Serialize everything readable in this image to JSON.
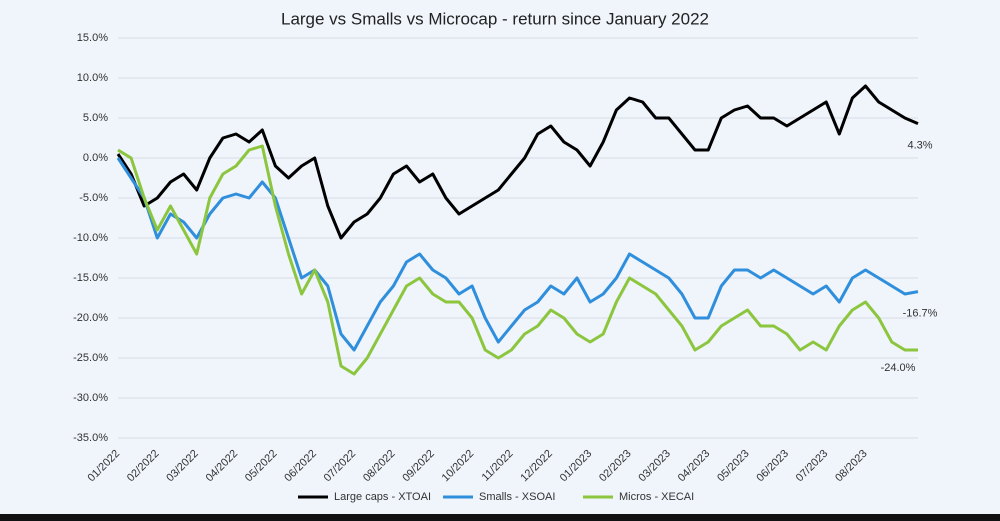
{
  "chart_data": {
    "type": "line",
    "title": "Large vs Smalls vs Microcap - return since January 2022",
    "categories": [
      "01/2022",
      null,
      null,
      "02/2022",
      null,
      null,
      "03/2022",
      null,
      null,
      "04/2022",
      null,
      null,
      "05/2022",
      null,
      null,
      "06/2022",
      null,
      null,
      "07/2022",
      null,
      null,
      "08/2022",
      null,
      null,
      "09/2022",
      null,
      null,
      "10/2022",
      null,
      null,
      "11/2022",
      null,
      null,
      "12/2022",
      null,
      null,
      "01/2023",
      null,
      null,
      "02/2023",
      null,
      null,
      "03/2023",
      null,
      null,
      "04/2023",
      null,
      null,
      "05/2023",
      null,
      null,
      "06/2023",
      null,
      null,
      "07/2023",
      null,
      null,
      "08/2023",
      null,
      null,
      null,
      null
    ],
    "ylim": [
      -35,
      15
    ],
    "yticks": [
      {
        "value": 15,
        "label": "15.0%"
      },
      {
        "value": 10,
        "label": "10.0%"
      },
      {
        "value": 5,
        "label": "5.0%"
      },
      {
        "value": 0,
        "label": "0.0%"
      },
      {
        "value": -5,
        "label": "-5.0%"
      },
      {
        "value": -10,
        "label": "-10.0%"
      },
      {
        "value": -15,
        "label": "-15.0%"
      },
      {
        "value": -20,
        "label": "-20.0%"
      },
      {
        "value": -25,
        "label": "-25.0%"
      },
      {
        "value": -30,
        "label": "-30.0%"
      },
      {
        "value": -35,
        "label": "-35.0%"
      }
    ],
    "grid": true,
    "legend": "bottom",
    "series": [
      {
        "name": "Large caps - XTOAI",
        "color": "#000000",
        "end_label": "4.3%",
        "values": [
          0.5,
          -2,
          -6,
          -5,
          -3,
          -2,
          -4,
          0,
          2.5,
          3,
          2,
          3.5,
          -1,
          -2.5,
          -1,
          0,
          -6,
          -10,
          -8,
          -7,
          -5,
          -2,
          -1,
          -3,
          -2,
          -5,
          -7,
          -6,
          -5,
          -4,
          -2,
          0,
          3,
          4,
          2,
          1,
          -1,
          2,
          6,
          7.5,
          7,
          5,
          5,
          3,
          1,
          1,
          5,
          6,
          6.5,
          5,
          5,
          4,
          5,
          6,
          7,
          3,
          7.5,
          9,
          7,
          6,
          5,
          4.3
        ]
      },
      {
        "name": "Smalls - XSOAI",
        "color": "#2f8fdc",
        "end_label": "-16.7%",
        "values": [
          0,
          -2.5,
          -5,
          -10,
          -7,
          -8,
          -10,
          -7,
          -5,
          -4.5,
          -5,
          -3,
          -5,
          -10,
          -15,
          -14,
          -16,
          -22,
          -24,
          -21,
          -18,
          -16,
          -13,
          -12,
          -14,
          -15,
          -17,
          -16,
          -20,
          -23,
          -21,
          -19,
          -18,
          -16,
          -17,
          -15,
          -18,
          -17,
          -15,
          -12,
          -13,
          -14,
          -15,
          -17,
          -20,
          -20,
          -16,
          -14,
          -14,
          -15,
          -14,
          -15,
          -16,
          -17,
          -16,
          -18,
          -15,
          -14,
          -15,
          -16,
          -17,
          -16.7
        ]
      },
      {
        "name": "Micros - XECAI",
        "color": "#8cc63f",
        "end_label": "-24.0%",
        "values": [
          1,
          0,
          -5,
          -9,
          -6,
          -9,
          -12,
          -5,
          -2,
          -1,
          1,
          1.5,
          -6,
          -12,
          -17,
          -14,
          -18,
          -26,
          -27,
          -25,
          -22,
          -19,
          -16,
          -15,
          -17,
          -18,
          -18,
          -20,
          -24,
          -25,
          -24,
          -22,
          -21,
          -19,
          -20,
          -22,
          -23,
          -22,
          -18,
          -15,
          -16,
          -17,
          -19,
          -21,
          -24,
          -23,
          -21,
          -20,
          -19,
          -21,
          -21,
          -22,
          -24,
          -23,
          -24,
          -21,
          -19,
          -18,
          -20,
          -23,
          -24,
          -24.0
        ]
      }
    ]
  }
}
